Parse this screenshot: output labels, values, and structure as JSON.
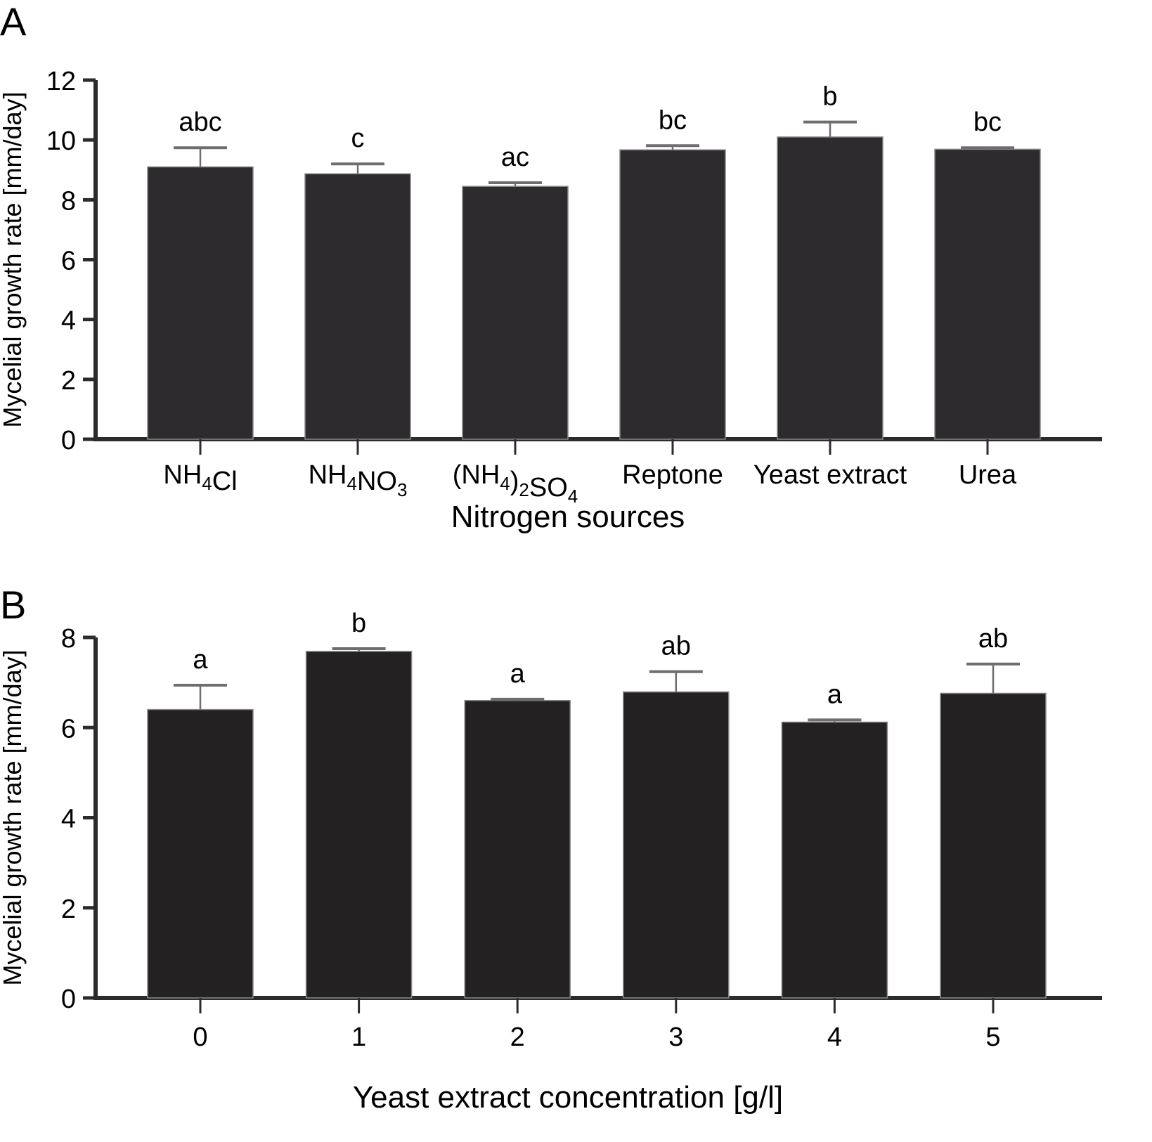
{
  "chart_data": [
    {
      "panel": "A",
      "type": "bar",
      "title": "",
      "xlabel": "Nitrogen sources",
      "ylabel": "Mycelial growth rate [mm/day]",
      "ylim": [
        0,
        12
      ],
      "yticks": [
        0,
        2,
        4,
        6,
        8,
        10,
        12
      ],
      "categories": [
        "NH4Cl",
        "NH4NO3",
        "(NH4)2SO4",
        "Reptone",
        "Yeast extract",
        "Urea"
      ],
      "category_labels": [
        [
          [
            "NH",
            ""
          ],
          [
            "4",
            "sub"
          ],
          [
            "Cl",
            ""
          ]
        ],
        [
          [
            "NH",
            ""
          ],
          [
            "4",
            "sub"
          ],
          [
            "NO",
            ""
          ],
          [
            "3",
            "sub"
          ]
        ],
        [
          [
            "(NH",
            ""
          ],
          [
            "4",
            "sub"
          ],
          [
            ")",
            ""
          ],
          [
            "2",
            "sub"
          ],
          [
            "SO",
            ""
          ],
          [
            "4",
            "sub"
          ]
        ],
        [
          [
            "Reptone",
            ""
          ]
        ],
        [
          [
            "Yeast extract",
            ""
          ]
        ],
        [
          [
            "Urea",
            ""
          ]
        ]
      ],
      "values": [
        9.1,
        8.87,
        8.45,
        9.67,
        10.1,
        9.69
      ],
      "errors": [
        0.64,
        0.33,
        0.12,
        0.14,
        0.5,
        0.05
      ],
      "significance": [
        "abc",
        "c",
        "ac",
        "bc",
        "b",
        "bc"
      ],
      "grid": false,
      "bar_color": "#2e2b2e"
    },
    {
      "panel": "B",
      "type": "bar",
      "title": "",
      "xlabel": "Yeast extract concentration [g/l]",
      "ylabel": "Mycelial growth rate [mm/day]",
      "ylim": [
        0,
        8
      ],
      "yticks": [
        0,
        2,
        4,
        6,
        8
      ],
      "categories": [
        "0",
        "1",
        "2",
        "3",
        "4",
        "5"
      ],
      "values": [
        6.4,
        7.69,
        6.6,
        6.79,
        6.12,
        6.76
      ],
      "errors": [
        0.54,
        0.06,
        0.03,
        0.45,
        0.05,
        0.65
      ],
      "significance": [
        "a",
        "b",
        "a",
        "ab",
        "a",
        "ab"
      ],
      "grid": false,
      "bar_color": "#242122"
    }
  ]
}
